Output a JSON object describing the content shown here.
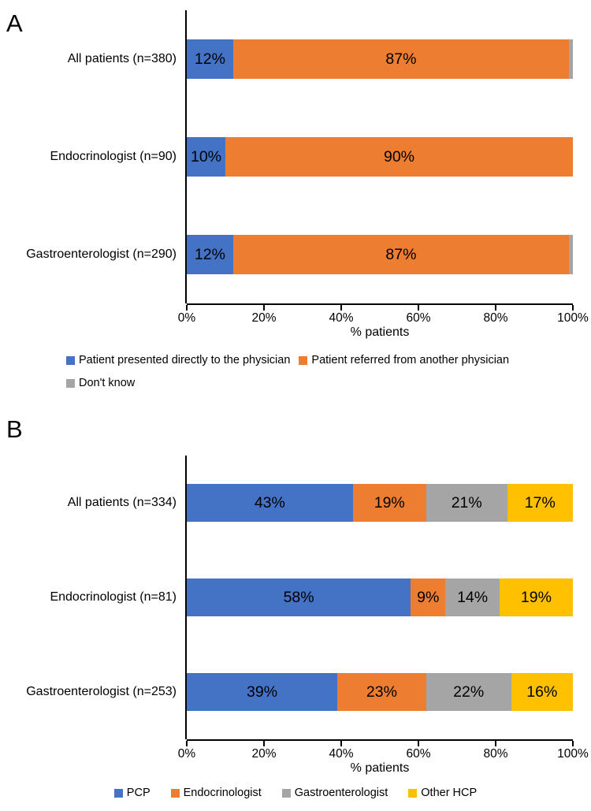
{
  "colors": {
    "blue": "#4472C4",
    "orange": "#ED7D31",
    "gray": "#A5A5A5",
    "yellow": "#FFC000",
    "axis": "#000000"
  },
  "chart_data": [
    {
      "type": "bar",
      "stacked": true,
      "orientation": "horizontal",
      "panel_label": "A",
      "categories": [
        "All patients (n=380)",
        "Endocrinologist (n=90)",
        "Gastroenterologist (n=290)"
      ],
      "series": [
        {
          "name": "Patient presented directly to the physician",
          "color_key": "blue",
          "values": [
            12,
            10,
            12
          ],
          "labels": [
            "12%",
            "10%",
            "12%"
          ]
        },
        {
          "name": "Patient referred from another physician",
          "color_key": "orange",
          "values": [
            87,
            90,
            87
          ],
          "labels": [
            "87%",
            "90%",
            "87%"
          ]
        },
        {
          "name": "Don't know",
          "color_key": "gray",
          "values": [
            1,
            0,
            1
          ],
          "labels": [
            "",
            "",
            ""
          ]
        }
      ],
      "xlabel": "% patients",
      "xlim": [
        0,
        100
      ],
      "xticks": [
        "0%",
        "20%",
        "40%",
        "60%",
        "80%",
        "100%"
      ],
      "grid": false,
      "legend_rows": [
        [
          0,
          1
        ],
        [
          2
        ]
      ],
      "legend_position": "bottom-left"
    },
    {
      "type": "bar",
      "stacked": true,
      "orientation": "horizontal",
      "panel_label": "B",
      "categories": [
        "All patients (n=334)",
        "Endocrinologist (n=81)",
        "Gastroenterologist (n=253)"
      ],
      "series": [
        {
          "name": "PCP",
          "color_key": "blue",
          "values": [
            43,
            58,
            39
          ],
          "labels": [
            "43%",
            "58%",
            "39%"
          ]
        },
        {
          "name": "Endocrinologist",
          "color_key": "orange",
          "values": [
            19,
            9,
            23
          ],
          "labels": [
            "19%",
            "9%",
            "23%"
          ]
        },
        {
          "name": "Gastroenterologist",
          "color_key": "gray",
          "values": [
            21,
            14,
            22
          ],
          "labels": [
            "21%",
            "14%",
            "22%"
          ]
        },
        {
          "name": "Other HCP",
          "color_key": "yellow",
          "values": [
            17,
            19,
            16
          ],
          "labels": [
            "17%",
            "19%",
            "16%"
          ]
        }
      ],
      "xlabel": "% patients",
      "xlim": [
        0,
        100
      ],
      "xticks": [
        "0%",
        "20%",
        "40%",
        "60%",
        "80%",
        "100%"
      ],
      "grid": false,
      "legend_rows": [
        [
          0,
          1,
          2,
          3
        ]
      ],
      "legend_position": "bottom-center"
    }
  ]
}
